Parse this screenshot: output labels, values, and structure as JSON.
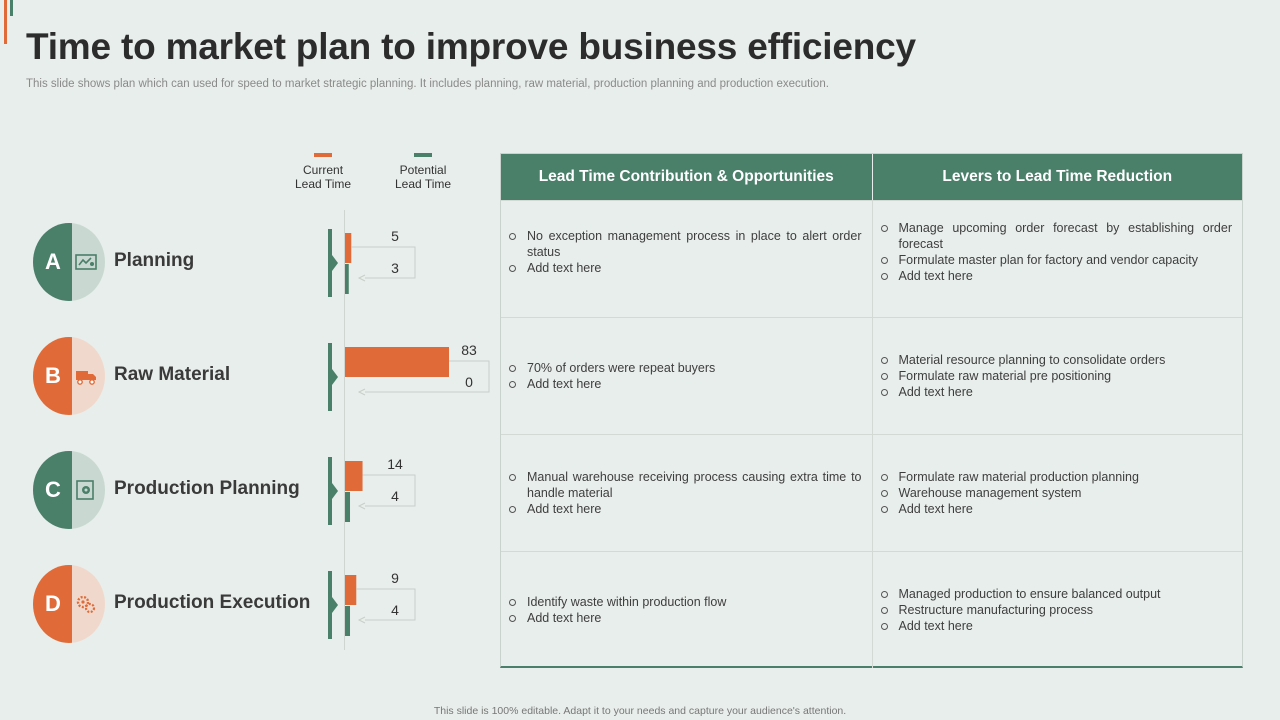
{
  "title": "Time to market plan to improve business efficiency",
  "subtitle": "This slide shows plan which can used for speed to market strategic planning. It includes planning, raw material, production planning and production execution.",
  "colors": {
    "accent": "#e06b38",
    "brand": "#4a7f6a",
    "accent_light": "#f0d9cc",
    "brand_light": "#c9d9d1"
  },
  "legend": {
    "current_line1": "Current",
    "current_line2": "Lead Time",
    "potential_line1": "Potential",
    "potential_line2": "Lead Time"
  },
  "rows": [
    {
      "letter": "A",
      "label": "Planning",
      "icon": "planning-board-icon",
      "theme": "brand"
    },
    {
      "letter": "B",
      "label": "Raw Material",
      "icon": "delivery-truck-icon",
      "theme": "accent"
    },
    {
      "letter": "C",
      "label": "Production Planning",
      "icon": "production-gear-icon",
      "theme": "brand"
    },
    {
      "letter": "D",
      "label": "Production Execution",
      "icon": "execution-gears-icon",
      "theme": "accent"
    }
  ],
  "chart_data": {
    "type": "bar",
    "orientation": "horizontal",
    "categories": [
      "Planning",
      "Raw Material",
      "Production Planning",
      "Production Execution"
    ],
    "series": [
      {
        "name": "Current Lead Time",
        "values": [
          5,
          83,
          14,
          9
        ]
      },
      {
        "name": "Potential Lead Time",
        "values": [
          3,
          0,
          4,
          4
        ]
      }
    ],
    "data_labels": {
      "current": [
        "5",
        "83",
        "14",
        "9"
      ],
      "potential": [
        "3",
        "0",
        "4",
        "4"
      ]
    },
    "xlim": [
      0,
      90
    ],
    "grid": false,
    "legend": "top"
  },
  "table": {
    "headers": [
      "Lead Time Contribution & Opportunities",
      "Levers to Lead Time Reduction"
    ],
    "rows": [
      {
        "col1": [
          "No exception management process in place to alert order status",
          "Add text here"
        ],
        "col2": [
          "Manage upcoming order forecast by establishing order forecast",
          " Formulate master plan for factory and vendor  capacity",
          "Add text here"
        ]
      },
      {
        "col1": [
          "70% of orders were repeat buyers",
          "Add text here"
        ],
        "col2": [
          "Material resource planning to consolidate orders",
          "Formulate raw material pre positioning",
          "Add text here"
        ]
      },
      {
        "col1": [
          "Manual warehouse receiving process causing extra time to handle material",
          "Add text here"
        ],
        "col2": [
          "Formulate raw material production planning",
          "Warehouse management  system",
          " Add text here"
        ]
      },
      {
        "col1": [
          "Identify waste within production flow",
          "Add text here"
        ],
        "col2": [
          "Managed production to ensure balanced output",
          "Restructure manufacturing process",
          "Add text here"
        ]
      }
    ]
  },
  "footer": "This slide is 100% editable.  Adapt it to your needs and capture your audience's attention."
}
